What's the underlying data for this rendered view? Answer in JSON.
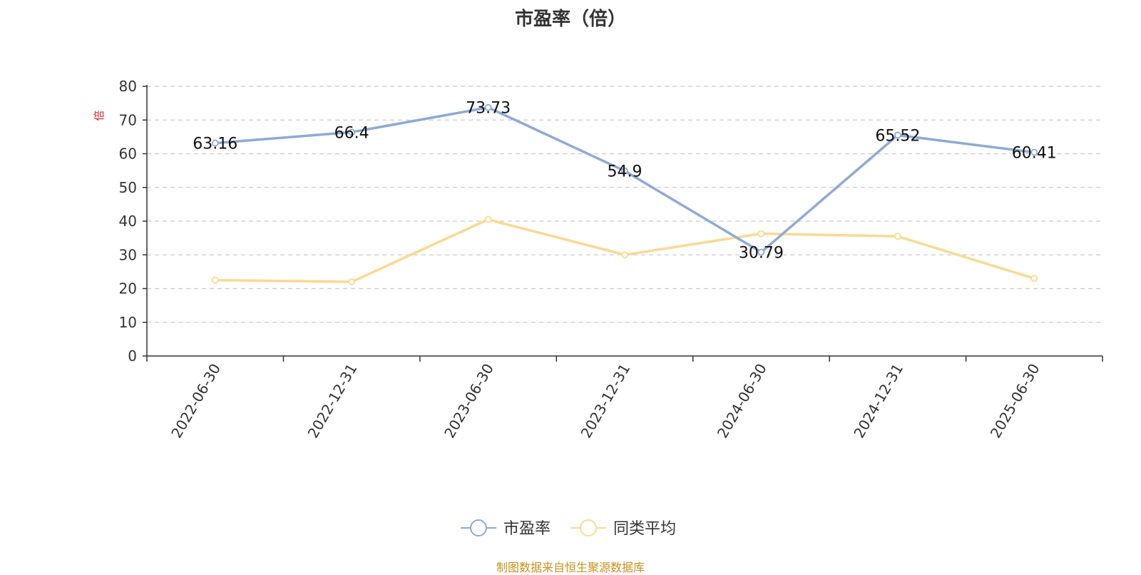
{
  "chart_data": {
    "type": "line",
    "title": "市盈率（倍）",
    "ylabel": "倍",
    "ylim": [
      0,
      80
    ],
    "yticks": [
      0,
      10,
      20,
      30,
      40,
      50,
      60,
      70,
      80
    ],
    "grid": true,
    "legend_position": "bottom-center",
    "categories": [
      "2022-06-30",
      "2022-12-31",
      "2023-06-30",
      "2023-12-31",
      "2024-06-30",
      "2024-12-31",
      "2025-06-30"
    ],
    "series": [
      {
        "name": "市盈率",
        "color": "#8eaad6",
        "values": [
          63.16,
          66.4,
          73.73,
          54.9,
          30.79,
          65.52,
          60.41
        ],
        "data_labels": [
          "63.16",
          "66.4",
          "73.73",
          "54.9",
          "30.79",
          "65.52",
          "60.41"
        ]
      },
      {
        "name": "同类平均",
        "color": "#fbd991",
        "values": [
          22.5,
          22.0,
          40.5,
          30.0,
          36.3,
          35.5,
          23.0
        ]
      }
    ]
  },
  "source_note": "制图数据来自恒生聚源数据库",
  "colors": {
    "title": "#333333",
    "axis": "#333333",
    "grid": "#cccccc",
    "ylabel": "#e02020",
    "source_note": "#c8901e"
  }
}
